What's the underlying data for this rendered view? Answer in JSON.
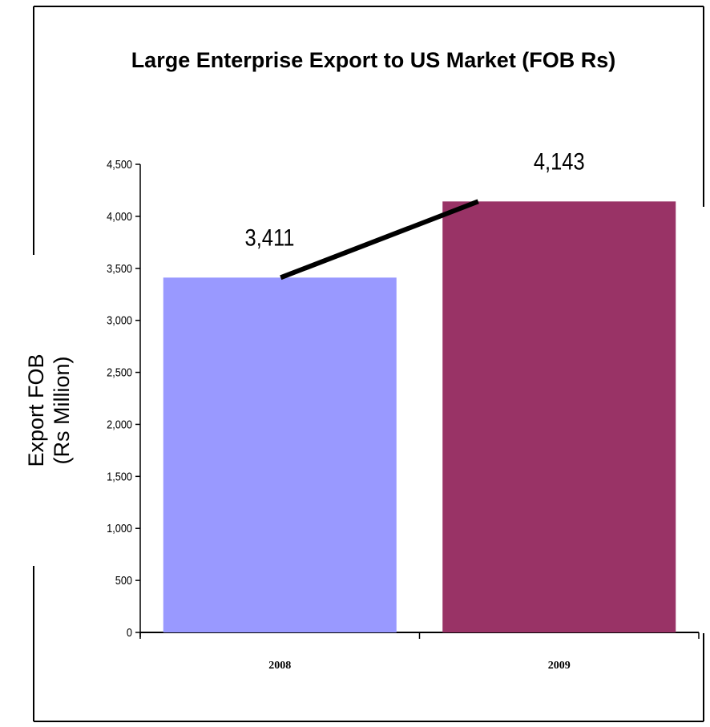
{
  "chart_data": {
    "type": "bar",
    "title": "Large Enterprise Export to US Market (FOB Rs)",
    "ylabel_lines": [
      "Export FOB",
      "(Rs Million)"
    ],
    "xlabel": "",
    "categories": [
      "2008",
      "2009"
    ],
    "values": [
      3411,
      4143
    ],
    "data_labels": [
      "3,411",
      "4,143"
    ],
    "bar_colors": [
      "#9999FF",
      "#993366"
    ],
    "trend_line": {
      "from": 3411,
      "to": 4143,
      "color": "#000000"
    },
    "ylim": [
      0,
      4500
    ],
    "yticks": [
      0,
      500,
      1000,
      1500,
      2000,
      2500,
      3000,
      3500,
      4000,
      4500
    ],
    "ytick_labels": [
      "0",
      "500",
      "1,000",
      "1,500",
      "2,000",
      "2,500",
      "3,000",
      "3,500",
      "4,000",
      "4,500"
    ],
    "grid": false,
    "legend": "none"
  }
}
